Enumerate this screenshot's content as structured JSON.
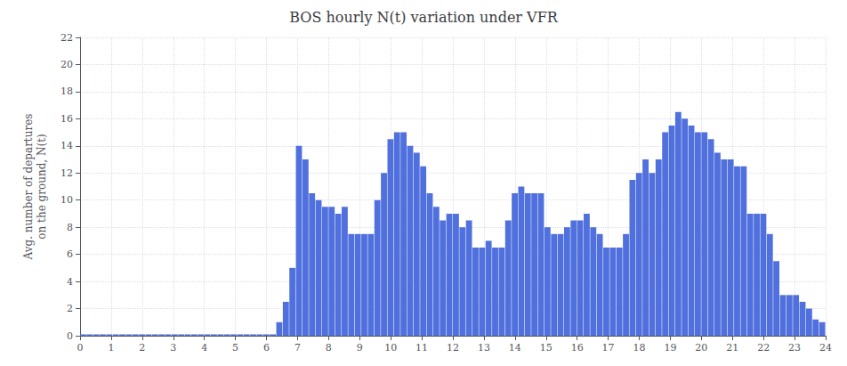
{
  "chart_data": {
    "type": "bar",
    "title": "BOS hourly N(t) variation under VFR",
    "ylabel": "Avg. number of departures\non the ground, N(t)",
    "values": [
      0.1,
      0.1,
      0.1,
      0.1,
      0.1,
      0.1,
      0.1,
      0.1,
      0.1,
      0.1,
      0.1,
      0.1,
      0.1,
      0.1,
      0.1,
      0.1,
      0.1,
      0.1,
      0.1,
      0.1,
      0.1,
      0.1,
      0.1,
      0.1,
      0.1,
      0.1,
      0.1,
      0.1,
      0.1,
      0.1,
      1.0,
      2.5,
      5.0,
      14.0,
      13.0,
      10.5,
      10.0,
      9.5,
      9.5,
      9.0,
      9.5,
      7.5,
      7.5,
      7.5,
      7.5,
      10.0,
      12.0,
      14.5,
      15.0,
      15.0,
      14.0,
      13.5,
      12.5,
      10.5,
      9.5,
      8.5,
      9.0,
      9.0,
      8.0,
      8.5,
      6.5,
      6.5,
      7.0,
      6.5,
      6.5,
      8.5,
      10.5,
      11.0,
      10.5,
      10.5,
      10.5,
      8.0,
      7.5,
      7.5,
      8.0,
      8.5,
      8.5,
      9.0,
      8.0,
      7.5,
      6.5,
      6.5,
      6.5,
      7.5,
      11.5,
      12.0,
      13.0,
      12.0,
      13.0,
      15.0,
      15.5,
      16.5,
      16.0,
      15.5,
      15.0,
      15.0,
      14.5,
      13.5,
      13.0,
      13.0,
      12.5,
      12.5,
      9.0,
      9.0,
      9.0,
      7.5,
      5.5,
      3.0,
      3.0,
      3.0,
      2.5,
      2.0,
      1.2,
      1.0
    ],
    "xlim": [
      0,
      24
    ],
    "xticks": [
      0,
      1,
      2,
      3,
      4,
      5,
      6,
      7,
      8,
      9,
      10,
      11,
      12,
      13,
      14,
      15,
      16,
      17,
      18,
      19,
      20,
      21,
      22,
      23,
      24
    ],
    "ylim": [
      0,
      22
    ],
    "yticks": [
      0,
      2,
      4,
      6,
      8,
      10,
      12,
      14,
      16,
      18,
      20,
      22
    ],
    "grid": true
  }
}
